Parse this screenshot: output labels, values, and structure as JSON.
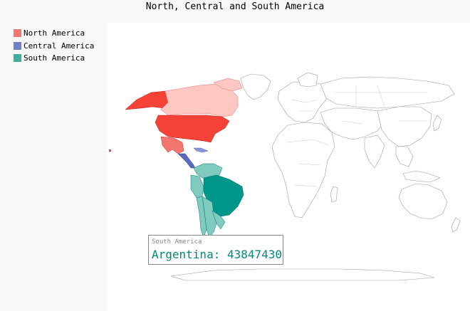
{
  "title": "North, Central and South America",
  "legend": [
    {
      "label": "North America",
      "color": "#f4776f"
    },
    {
      "label": "Central America",
      "color": "#6f7fc8"
    },
    {
      "label": "South America",
      "color": "#3fae9c"
    }
  ],
  "tooltip": {
    "region": "South America",
    "country": "Argentina",
    "value": "43847430",
    "text": "Argentina: 43847430"
  },
  "colors": {
    "north_dark": "#f44336",
    "north_light": "#ffc7c2",
    "central": "#5c6bc0",
    "south_dark": "#00968a",
    "south_light": "#80cbc0",
    "land_outline": "#bdbdbd"
  }
}
